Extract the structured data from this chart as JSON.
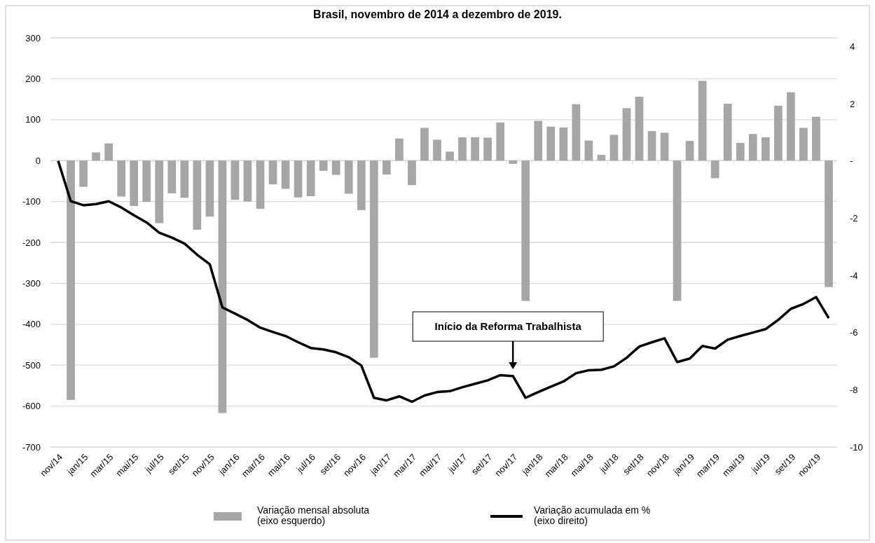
{
  "chart_data": {
    "type": "bar",
    "title": "Brasil, novembro de 2014 a dezembro de 2019.",
    "categories": [
      "nov/14",
      null,
      "jan/15",
      null,
      "mar/15",
      null,
      "mai/15",
      null,
      "jul/15",
      null,
      "set/15",
      null,
      "nov/15",
      null,
      "jan/16",
      null,
      "mar/16",
      null,
      "mai/16",
      null,
      "jul/16",
      null,
      "set/16",
      null,
      "nov/16",
      null,
      "jan/17",
      null,
      "mar/17",
      null,
      "mai/17",
      null,
      "jul/17",
      null,
      "set/17",
      null,
      "nov/17",
      null,
      "jan/18",
      null,
      "mar/18",
      null,
      "mai/18",
      null,
      "jul/18",
      null,
      "set/18",
      null,
      "nov/18",
      null,
      "jan/19",
      null,
      "mar/19",
      null,
      "mai/19",
      null,
      "jul/19",
      null,
      "set/19",
      null,
      "nov/19",
      null
    ],
    "series": [
      {
        "name": "Variação mensal absoluta\n(eixo esquerdo)",
        "color": "#a6a6a6",
        "values": [
          null,
          -585,
          -64,
          20,
          42,
          -88,
          -111,
          -101,
          -153,
          -80,
          -91,
          -169,
          -137,
          -617,
          -96,
          -100,
          -118,
          -58,
          -69,
          -90,
          -87,
          -25,
          -35,
          -81,
          -121,
          -482,
          -34,
          54,
          -60,
          80,
          51,
          22,
          57,
          57,
          56,
          93,
          -8,
          -343,
          97,
          83,
          81,
          138,
          49,
          14,
          63,
          128,
          156,
          72,
          68,
          -343,
          48,
          195,
          -43,
          139,
          43,
          65,
          57,
          134,
          167,
          80,
          107,
          -309
        ]
      },
      {
        "name": "Variação acumulada em %\n(eixo direito)",
        "type": "line",
        "axis": "y2",
        "color": "#000000",
        "values": [
          0,
          -1.41,
          -1.55,
          -1.51,
          -1.41,
          -1.63,
          -1.9,
          -2.15,
          -2.51,
          -2.68,
          -2.89,
          -3.28,
          -3.61,
          -5.12,
          -5.34,
          -5.56,
          -5.83,
          -5.98,
          -6.12,
          -6.34,
          -6.54,
          -6.59,
          -6.69,
          -6.86,
          -7.15,
          -8.28,
          -8.37,
          -8.23,
          -8.42,
          -8.2,
          -8.08,
          -8.05,
          -7.91,
          -7.79,
          -7.67,
          -7.49,
          -7.52,
          -8.28,
          -8.08,
          -7.89,
          -7.71,
          -7.42,
          -7.32,
          -7.3,
          -7.18,
          -6.88,
          -6.49,
          -6.34,
          -6.2,
          -7.03,
          -6.91,
          -6.47,
          -6.56,
          -6.25,
          -6.12,
          -6,
          -5.88,
          -5.56,
          -5.17,
          -5,
          -4.76,
          -5.5
        ]
      }
    ],
    "ylim": [
      -700,
      300
    ],
    "yticks": [
      -700,
      -600,
      -500,
      -400,
      -300,
      -200,
      -100,
      0,
      100,
      200,
      300
    ],
    "y2lim": [
      -10,
      4.3
    ],
    "y2ticks": [
      -10,
      -8,
      -6,
      -4,
      -2,
      {
        "value": 0,
        "label": "-"
      },
      2,
      4
    ],
    "grid": "y",
    "legend": "bottom",
    "annotations": [
      "Início da Reforma Trabalhista"
    ]
  }
}
